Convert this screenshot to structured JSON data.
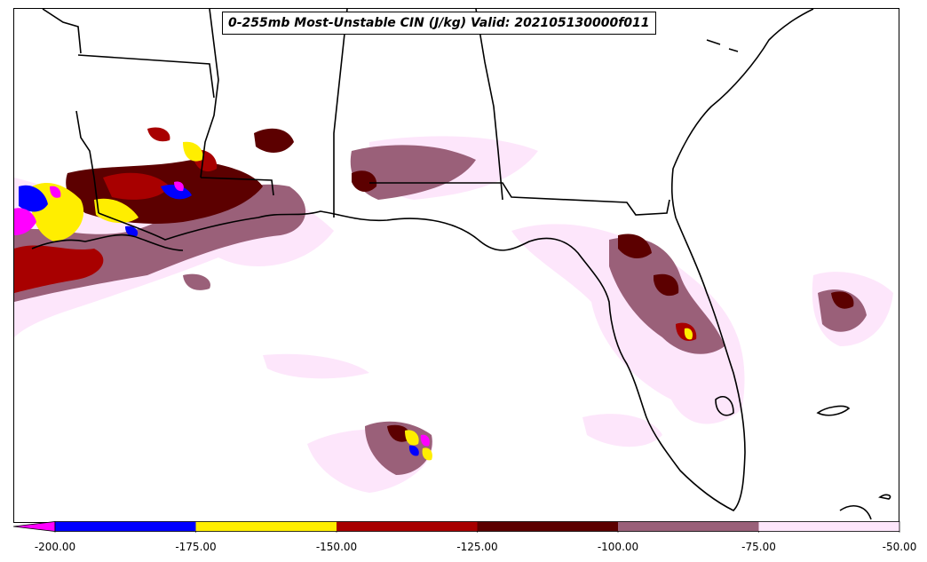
{
  "title": "0-255mb Most-Unstable CIN (J/kg) Valid: 202105130000f011",
  "colorbar": {
    "segments": [
      {
        "from": -200,
        "to": -175,
        "color": "#0000ff"
      },
      {
        "from": -175,
        "to": -150,
        "color": "#ffee00"
      },
      {
        "from": -150,
        "to": -125,
        "color": "#a80000"
      },
      {
        "from": -125,
        "to": -100,
        "color": "#5c0000"
      },
      {
        "from": -100,
        "to": -75,
        "color": "#9a6079"
      },
      {
        "from": -75,
        "to": -50,
        "color": "#fde6fb"
      }
    ],
    "extend_min_color": "#ff00ff",
    "ticks": [
      "-200.00",
      "-175.00",
      "-150.00",
      "-125.00",
      "-100.00",
      "-75.00",
      "-50.00"
    ]
  },
  "icons": {
    "state-boundaries": "black-lines",
    "coastline": "black-lines"
  }
}
